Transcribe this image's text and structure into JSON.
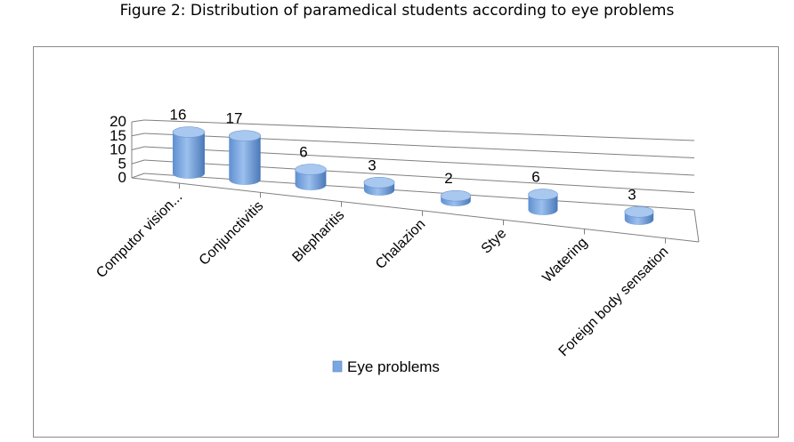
{
  "chart_data": {
    "type": "bar",
    "style": "3d-cylinder",
    "title": "Figure 2: Distribution of paramedical students according to eye problems",
    "categories": [
      "Computor vision...",
      "Conjunctivitis",
      "Blepharitis",
      "Chalazion",
      "Stye",
      "Watering",
      "Foreign body sensation"
    ],
    "series": [
      {
        "name": "Eye problems",
        "values": [
          16,
          17,
          6,
          3,
          2,
          6,
          3
        ]
      }
    ],
    "yticks": [
      "0",
      "5",
      "10",
      "15",
      "20"
    ],
    "ylim": [
      0,
      20
    ],
    "grid": true,
    "legend": "bottom-center",
    "colors": {
      "bar": "#7aa7e0",
      "bar_dark": "#4f7fc0",
      "top": "#a9c8ef",
      "grid": "#808080"
    }
  }
}
